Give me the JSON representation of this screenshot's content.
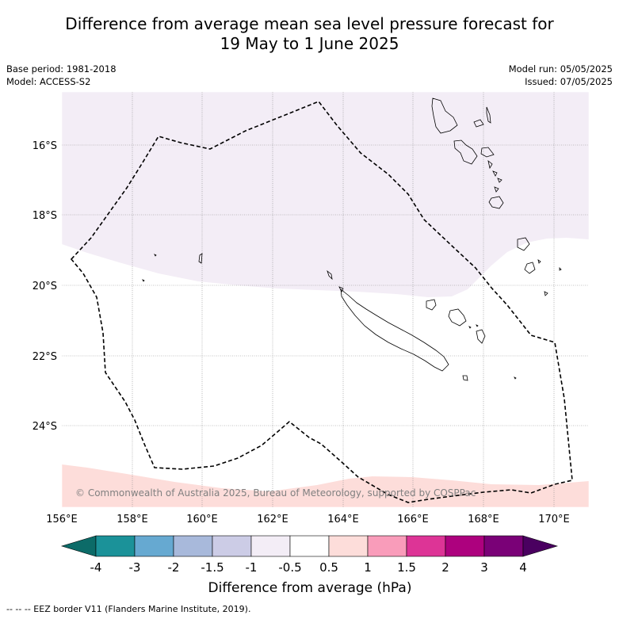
{
  "title_line1": "Difference from average mean sea level pressure forecast for",
  "title_line2": "19 May to 1 June 2025",
  "base_period": "Base period: 1981-2018",
  "model": "Model: ACCESS-S2",
  "model_run": "Model run: 05/05/2025",
  "issued": "Issued: 07/05/2025",
  "copyright": "© Commonwealth of Australia 2025, Bureau of Meteorology, supported by COSPPac",
  "lat_labels": [
    "16°S",
    "18°S",
    "20°S",
    "22°S",
    "24°S"
  ],
  "lon_labels": [
    "156°E",
    "158°E",
    "160°E",
    "162°E",
    "164°E",
    "166°E",
    "168°E",
    "170°E"
  ],
  "colorbar": {
    "label": "Difference from average (hPa)",
    "ticks": [
      "-4",
      "-3",
      "-2",
      "-1.5",
      "-1",
      "-0.5",
      "0.5",
      "1",
      "1.5",
      "2",
      "3",
      "4"
    ],
    "colors": [
      "#0c6b68",
      "#1b9299",
      "#66a9d1",
      "#a8b9db",
      "#cccce6",
      "#f3edf6",
      "#ffffff",
      "#fdddda",
      "#f99cba",
      "#dd3496",
      "#ad017e",
      "#7a0177",
      "#4a0060"
    ]
  },
  "footnote": "--  --  -- EEZ border V11 (Flanders Marine Institute, 2019)."
}
